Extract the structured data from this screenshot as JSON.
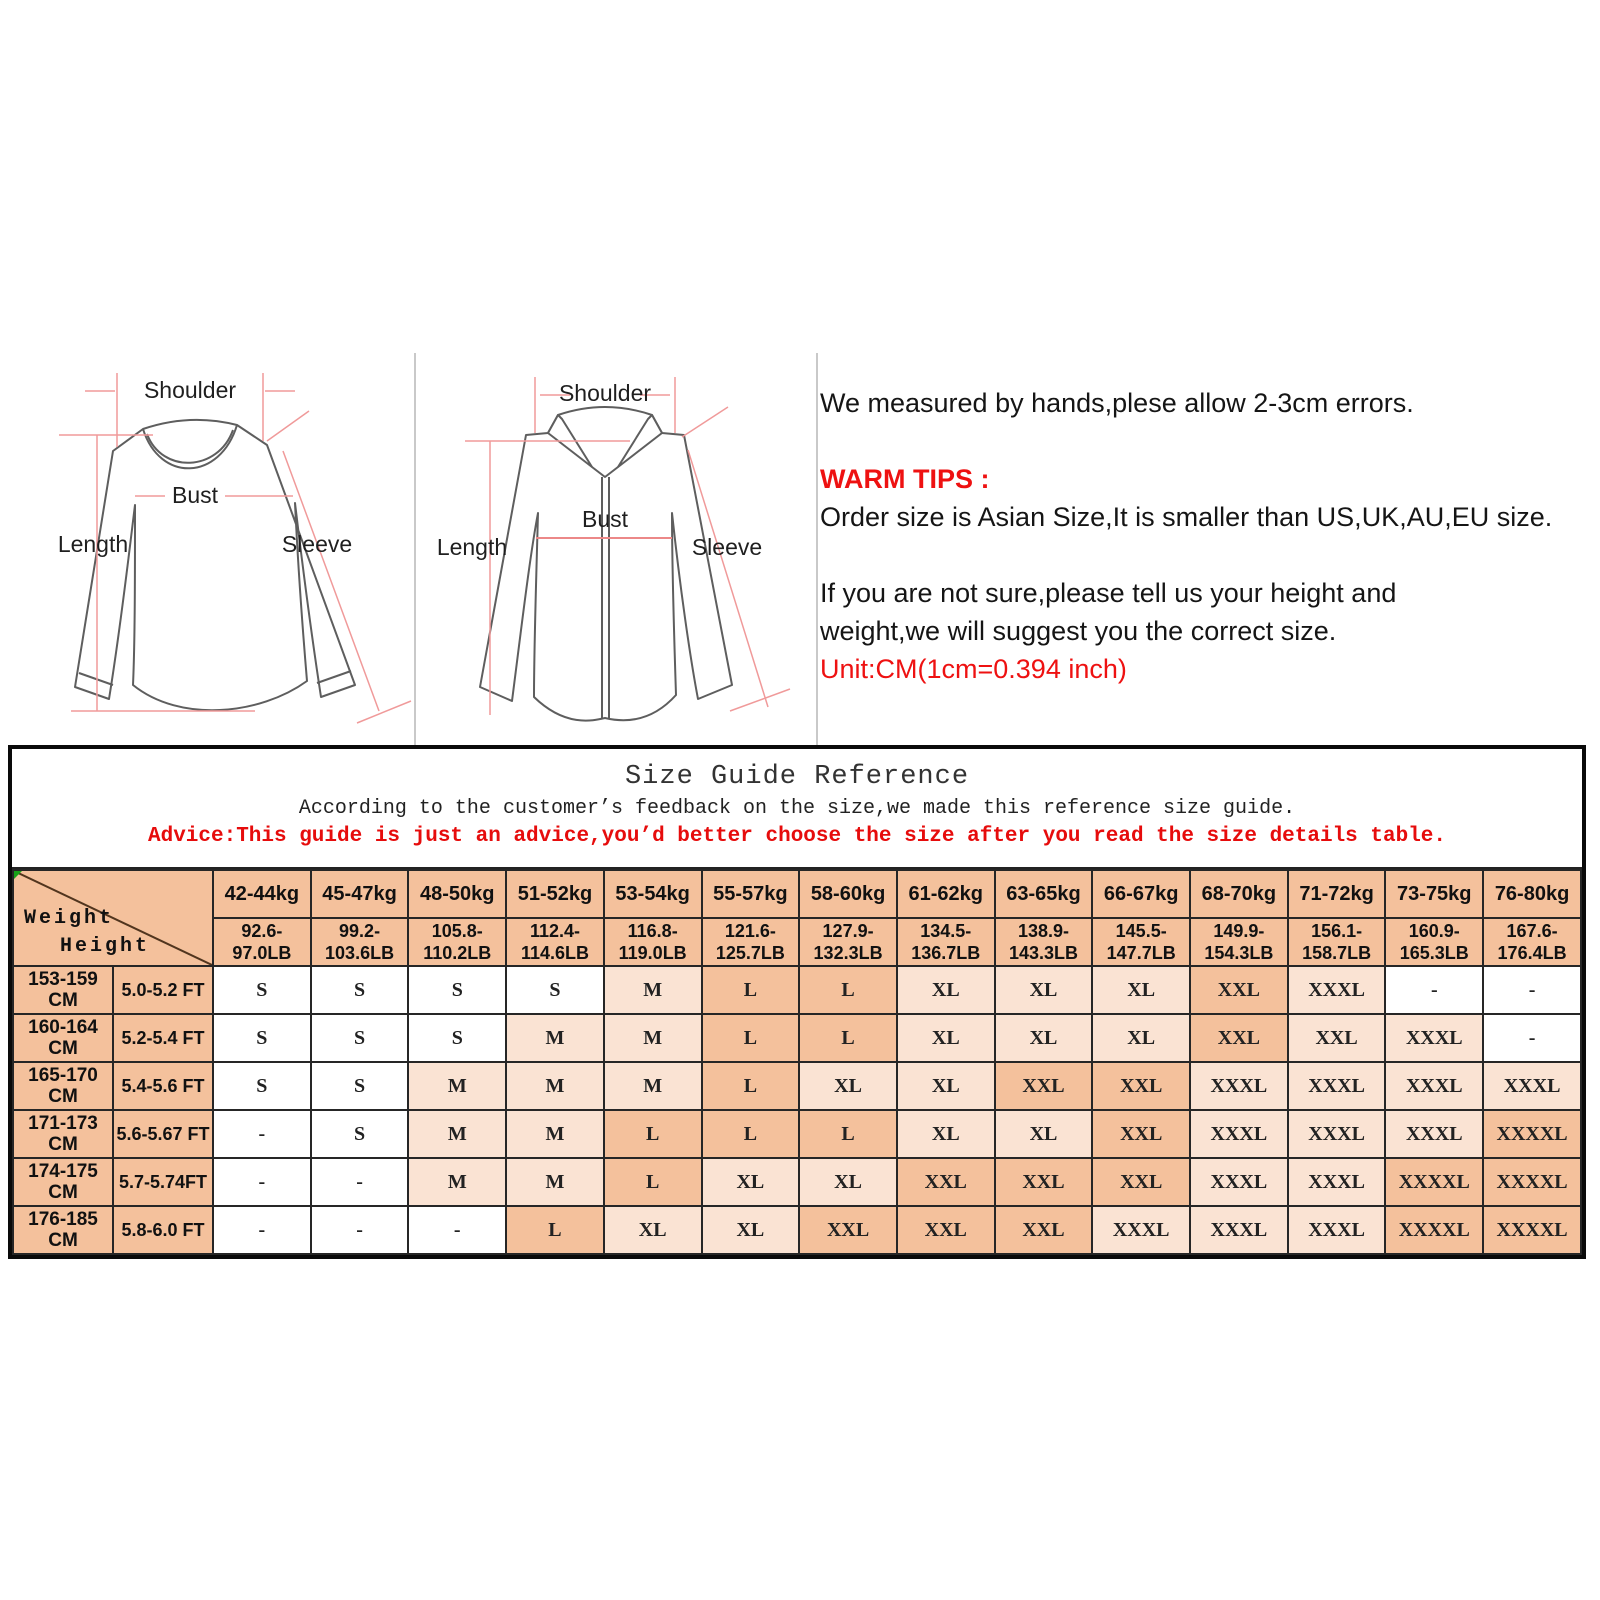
{
  "colors": {
    "cell_dark": "#f4c19c",
    "cell_light": "#fae3d3",
    "cell_white": "#ffffff",
    "accent_red": "#ee1111",
    "grid_line": "#262626",
    "measure_pink": "#f09a9a",
    "garment_outline": "#5e5e5e",
    "excel_corner_green": "#18a018"
  },
  "diagrams": {
    "tee_labels": {
      "shoulder": "Shoulder",
      "bust": "Bust",
      "length": "Length",
      "sleeve": "Sleeve"
    },
    "shirt_labels": {
      "shoulder": "Shoulder",
      "bust": "Bust",
      "length": "Length",
      "sleeve": "Sleeve"
    }
  },
  "notes": {
    "line1": "We measured by hands,plese allow 2-3cm errors.",
    "warm_tips_label": "WARM TIPS :",
    "line2": "Order size is Asian Size,It is smaller than US,UK,AU,EU size.",
    "line3a": "If you are not sure,please tell us your height and",
    "line3b": "weight,we will suggest you the correct size.",
    "unit_line": "Unit:CM(1cm=0.394 inch)"
  },
  "size_guide": {
    "title": "Size Guide Reference",
    "subtitle": "According to the customer’s feedback on the size,we made this reference size guide.",
    "advice": "Advice:This guide is just an advice,you’d better choose the size after you read the size details table.",
    "corner": {
      "top_label": "Weight",
      "bottom_label": "Height"
    },
    "weight_columns": [
      {
        "kg": "42-44kg",
        "lb": "92.6-\n97.0LB"
      },
      {
        "kg": "45-47kg",
        "lb": "99.2-\n103.6LB"
      },
      {
        "kg": "48-50kg",
        "lb": "105.8-\n110.2LB"
      },
      {
        "kg": "51-52kg",
        "lb": "112.4-\n114.6LB"
      },
      {
        "kg": "53-54kg",
        "lb": "116.8-\n119.0LB"
      },
      {
        "kg": "55-57kg",
        "lb": "121.6-\n125.7LB"
      },
      {
        "kg": "58-60kg",
        "lb": "127.9-\n132.3LB"
      },
      {
        "kg": "61-62kg",
        "lb": "134.5-\n136.7LB"
      },
      {
        "kg": "63-65kg",
        "lb": "138.9-\n143.3LB"
      },
      {
        "kg": "66-67kg",
        "lb": "145.5-\n147.7LB"
      },
      {
        "kg": "68-70kg",
        "lb": "149.9-\n154.3LB"
      },
      {
        "kg": "71-72kg",
        "lb": "156.1-\n158.7LB"
      },
      {
        "kg": "73-75kg",
        "lb": "160.9-\n165.3LB"
      },
      {
        "kg": "76-80kg",
        "lb": "167.6-\n176.4LB"
      }
    ],
    "rows": [
      {
        "height_cm": "153-159\nCM",
        "height_ft": "5.0-5.2 FT",
        "cells": [
          {
            "v": "S",
            "s": "w"
          },
          {
            "v": "S",
            "s": "w"
          },
          {
            "v": "S",
            "s": "w"
          },
          {
            "v": "S",
            "s": "w"
          },
          {
            "v": "M",
            "s": "l"
          },
          {
            "v": "L",
            "s": "d"
          },
          {
            "v": "L",
            "s": "d"
          },
          {
            "v": "XL",
            "s": "l"
          },
          {
            "v": "XL",
            "s": "l"
          },
          {
            "v": "XL",
            "s": "l"
          },
          {
            "v": "XXL",
            "s": "d"
          },
          {
            "v": "XXXL",
            "s": "l"
          },
          {
            "v": "-",
            "s": "w"
          },
          {
            "v": "-",
            "s": "w"
          }
        ]
      },
      {
        "height_cm": "160-164\nCM",
        "height_ft": "5.2-5.4 FT",
        "cells": [
          {
            "v": "S",
            "s": "w"
          },
          {
            "v": "S",
            "s": "w"
          },
          {
            "v": "S",
            "s": "w"
          },
          {
            "v": "M",
            "s": "l"
          },
          {
            "v": "M",
            "s": "l"
          },
          {
            "v": "L",
            "s": "d"
          },
          {
            "v": "L",
            "s": "d"
          },
          {
            "v": "XL",
            "s": "l"
          },
          {
            "v": "XL",
            "s": "l"
          },
          {
            "v": "XL",
            "s": "l"
          },
          {
            "v": "XXL",
            "s": "d"
          },
          {
            "v": "XXL",
            "s": "l"
          },
          {
            "v": "XXXL",
            "s": "l"
          },
          {
            "v": "-",
            "s": "w"
          }
        ]
      },
      {
        "height_cm": "165-170\nCM",
        "height_ft": "5.4-5.6 FT",
        "cells": [
          {
            "v": "S",
            "s": "w"
          },
          {
            "v": "S",
            "s": "w"
          },
          {
            "v": "M",
            "s": "l"
          },
          {
            "v": "M",
            "s": "l"
          },
          {
            "v": "M",
            "s": "l"
          },
          {
            "v": "L",
            "s": "d"
          },
          {
            "v": "XL",
            "s": "l"
          },
          {
            "v": "XL",
            "s": "l"
          },
          {
            "v": "XXL",
            "s": "d"
          },
          {
            "v": "XXL",
            "s": "d"
          },
          {
            "v": "XXXL",
            "s": "l"
          },
          {
            "v": "XXXL",
            "s": "l"
          },
          {
            "v": "XXXL",
            "s": "l"
          },
          {
            "v": "XXXL",
            "s": "l"
          }
        ]
      },
      {
        "height_cm": "171-173\nCM",
        "height_ft": "5.6-5.67 FT",
        "cells": [
          {
            "v": "-",
            "s": "w"
          },
          {
            "v": "S",
            "s": "w"
          },
          {
            "v": "M",
            "s": "l"
          },
          {
            "v": "M",
            "s": "l"
          },
          {
            "v": "L",
            "s": "d"
          },
          {
            "v": "L",
            "s": "d"
          },
          {
            "v": "L",
            "s": "d"
          },
          {
            "v": "XL",
            "s": "l"
          },
          {
            "v": "XL",
            "s": "l"
          },
          {
            "v": "XXL",
            "s": "d"
          },
          {
            "v": "XXXL",
            "s": "l"
          },
          {
            "v": "XXXL",
            "s": "l"
          },
          {
            "v": "XXXL",
            "s": "l"
          },
          {
            "v": "XXXXL",
            "s": "d"
          }
        ]
      },
      {
        "height_cm": "174-175\nCM",
        "height_ft": "5.7-5.74FT",
        "cells": [
          {
            "v": "-",
            "s": "w"
          },
          {
            "v": "-",
            "s": "w"
          },
          {
            "v": "M",
            "s": "l"
          },
          {
            "v": "M",
            "s": "l"
          },
          {
            "v": "L",
            "s": "d"
          },
          {
            "v": "XL",
            "s": "l"
          },
          {
            "v": "XL",
            "s": "l"
          },
          {
            "v": "XXL",
            "s": "d"
          },
          {
            "v": "XXL",
            "s": "d"
          },
          {
            "v": "XXL",
            "s": "d"
          },
          {
            "v": "XXXL",
            "s": "l"
          },
          {
            "v": "XXXL",
            "s": "l"
          },
          {
            "v": "XXXXL",
            "s": "d"
          },
          {
            "v": "XXXXL",
            "s": "d"
          }
        ]
      },
      {
        "height_cm": "176-185\nCM",
        "height_ft": "5.8-6.0 FT",
        "cells": [
          {
            "v": "-",
            "s": "w"
          },
          {
            "v": "-",
            "s": "w"
          },
          {
            "v": "-",
            "s": "w"
          },
          {
            "v": "L",
            "s": "d"
          },
          {
            "v": "XL",
            "s": "l"
          },
          {
            "v": "XL",
            "s": "l"
          },
          {
            "v": "XXL",
            "s": "d"
          },
          {
            "v": "XXL",
            "s": "d"
          },
          {
            "v": "XXL",
            "s": "d"
          },
          {
            "v": "XXXL",
            "s": "l"
          },
          {
            "v": "XXXL",
            "s": "l"
          },
          {
            "v": "XXXL",
            "s": "l"
          },
          {
            "v": "XXXXL",
            "s": "d"
          },
          {
            "v": "XXXXL",
            "s": "d"
          }
        ]
      }
    ]
  }
}
